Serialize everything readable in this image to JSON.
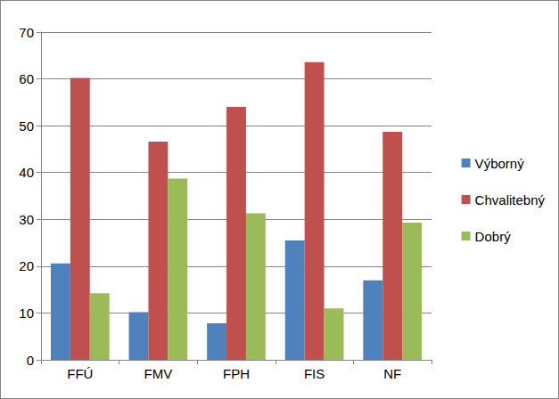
{
  "chart_data": {
    "type": "bar",
    "categories": [
      "FFÚ",
      "FMV",
      "FPH",
      "FIS",
      "NF"
    ],
    "series": [
      {
        "name": "Výborný",
        "color": "#4f81bd",
        "values": [
          20.6,
          10.2,
          7.8,
          25.5,
          17.0
        ]
      },
      {
        "name": "Chvalitebný",
        "color": "#c0504d",
        "values": [
          60.2,
          46.6,
          54.0,
          63.6,
          48.7
        ]
      },
      {
        "name": "Dobrý",
        "color": "#9bbb59",
        "values": [
          14.2,
          38.7,
          31.3,
          11.0,
          29.3
        ]
      }
    ],
    "ylim": [
      0,
      70
    ],
    "yticks": [
      0,
      10,
      20,
      30,
      40,
      50,
      60,
      70
    ],
    "grid": true,
    "legend": "right"
  }
}
